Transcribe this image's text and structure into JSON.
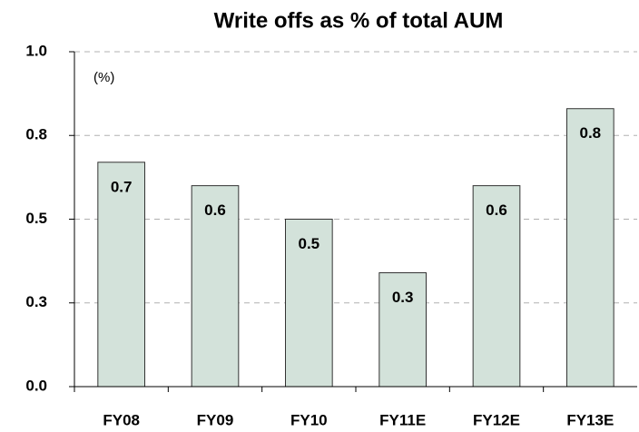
{
  "chart_data": {
    "type": "bar",
    "title": "Write offs as % of total AUM",
    "annotation": "(%)",
    "categories": [
      "FY08",
      "FY09",
      "FY10",
      "FY11E",
      "FY12E",
      "FY13E"
    ],
    "values": [
      0.67,
      0.6,
      0.5,
      0.34,
      0.6,
      0.83
    ],
    "value_labels": [
      "0.7",
      "0.6",
      "0.5",
      "0.3",
      "0.6",
      "0.8"
    ],
    "color": "#d3e2da",
    "ylim": [
      0,
      1
    ],
    "yticks": [
      {
        "value": 0,
        "label": "0.0"
      },
      {
        "value": 0.25,
        "label": "0.3"
      },
      0.5,
      {
        "value": 0.75,
        "label": "0.8"
      },
      {
        "value": 1,
        "label": "1.0"
      }
    ],
    "grid": true
  }
}
